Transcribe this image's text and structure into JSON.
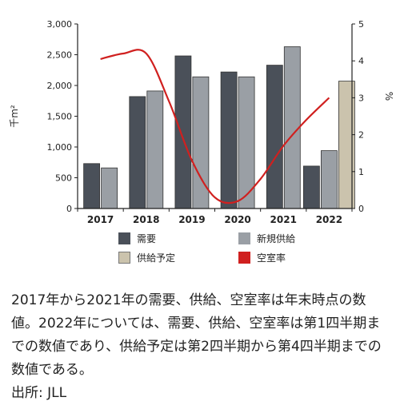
{
  "chart_data": {
    "type": "bar",
    "categories": [
      "2017",
      "2018",
      "2019",
      "2020",
      "2021",
      "2022"
    ],
    "series": [
      {
        "name": "需要",
        "values": [
          730,
          1820,
          2480,
          2220,
          2330,
          690
        ],
        "color": "#4a5059",
        "axis": "left"
      },
      {
        "name": "新規供給",
        "values": [
          660,
          1910,
          2140,
          2140,
          2630,
          940
        ],
        "color": "#9a9fa5",
        "axis": "left"
      },
      {
        "name": "供給予定",
        "values": [
          null,
          null,
          null,
          null,
          null,
          2070
        ],
        "color": "#cbc3ad",
        "axis": "left"
      },
      {
        "name": "空室率",
        "type": "line",
        "x": [
          2017,
          2017.5,
          2018,
          2018.5,
          2019,
          2019.5,
          2020,
          2020.5,
          2021,
          2021.5,
          2022
        ],
        "values": [
          4.05,
          4.2,
          4.2,
          2.9,
          1.3,
          0.3,
          0.2,
          0.8,
          1.7,
          2.4,
          3.0
        ],
        "color": "#d0201f",
        "axis": "right"
      }
    ],
    "ylabel": "千m²",
    "y2label": "%",
    "ylim": [
      0,
      3000
    ],
    "yticks": [
      "0",
      "500",
      "1,000",
      "1,500",
      "2,000",
      "2,500",
      "3,000"
    ],
    "y2lim": [
      0,
      5
    ],
    "y2ticks": [
      "0",
      "1",
      "2",
      "3",
      "4",
      "5"
    ],
    "grid": false,
    "legend_position": "bottom"
  },
  "legend": [
    {
      "label": "需要",
      "color": "#4a5059"
    },
    {
      "label": "新規供給",
      "color": "#9a9fa5"
    },
    {
      "label": "供給予定",
      "color": "#cbc3ad"
    },
    {
      "label": "空室率",
      "color": "#d0201f"
    }
  ],
  "caption": {
    "note": "2017年から2021年の需要、供給、空室率は年末時点の数値。2022年については、需要、供給、空室率は第1四半期までの数値であり、供給予定は第2四半期から第4四半期までの数値である。",
    "source": "出所: JLL"
  }
}
